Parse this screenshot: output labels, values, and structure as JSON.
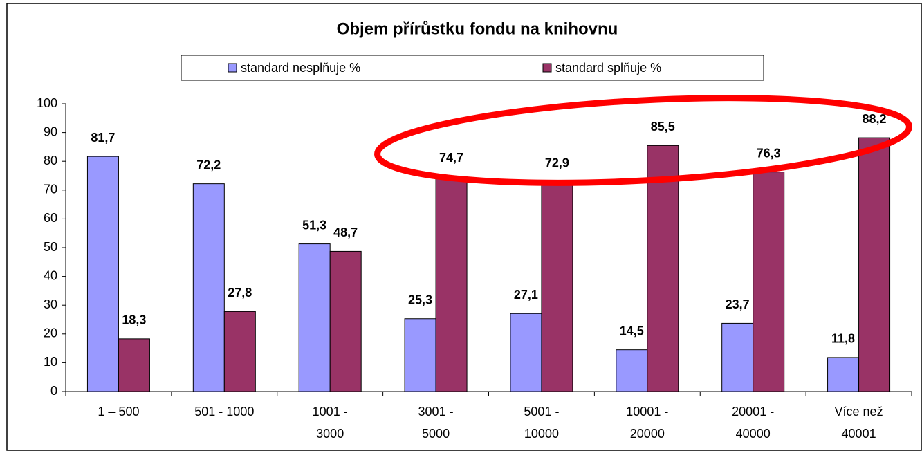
{
  "chart_data": {
    "type": "bar",
    "title": "Objem přírůstku fondu na knihovnu",
    "categories": [
      "1 – 500",
      "501 - 1000",
      "1001 -\n3000",
      "3001 -\n5000",
      "5001 -\n10000",
      "10001 -\n20000",
      "20001 -\n40000",
      "Více než\n40001"
    ],
    "series": [
      {
        "name": "standard nesplňuje %",
        "color": "#9999ff",
        "values": [
          81.7,
          72.2,
          51.3,
          25.3,
          27.1,
          14.5,
          23.7,
          11.8
        ],
        "value_labels": [
          "81,7",
          "72,2",
          "51,3",
          "25,3",
          "27,1",
          "14,5",
          "23,7",
          "11,8"
        ]
      },
      {
        "name": "standard splňuje %",
        "color": "#993366",
        "values": [
          18.3,
          27.8,
          48.7,
          74.7,
          72.9,
          85.5,
          76.3,
          88.2
        ],
        "value_labels": [
          "18,3",
          "27,8",
          "48,7",
          "74,7",
          "72,9",
          "85,5",
          "76,3",
          "88,2"
        ]
      }
    ],
    "ylim": [
      0,
      100
    ],
    "yticks": [
      0,
      10,
      20,
      30,
      40,
      50,
      60,
      70,
      80,
      90,
      100
    ],
    "grid": false,
    "legend": "top"
  }
}
